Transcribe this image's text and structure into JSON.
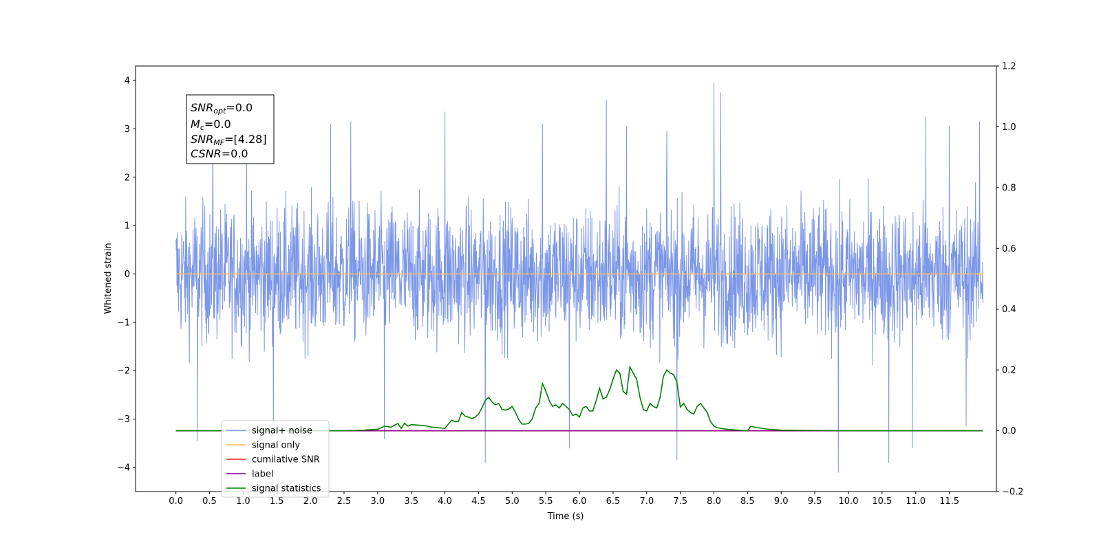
{
  "chart_data": {
    "type": "line",
    "title": "",
    "xlabel": "Time (s)",
    "ylabel": "Whitened strain",
    "y2label": "",
    "xlim": [
      -0.6,
      12.2
    ],
    "ylim": [
      -4.5,
      4.3
    ],
    "y2lim": [
      -0.2,
      1.2
    ],
    "x_ticks": [
      0.0,
      0.5,
      1.0,
      1.5,
      2.0,
      2.5,
      3.0,
      3.5,
      4.0,
      4.5,
      5.0,
      5.5,
      6.0,
      6.5,
      7.0,
      7.5,
      8.0,
      8.5,
      9.0,
      9.5,
      10.0,
      10.5,
      11.0,
      11.5
    ],
    "x_tick_labels": [
      "0.0",
      "0.5",
      "1.0",
      "1.5",
      "2.0",
      "2.5",
      "3.0",
      "3.5",
      "4.0",
      "4.5",
      "5.0",
      "5.5",
      "6.0",
      "6.5",
      "7.0",
      "7.5",
      "8.0",
      "8.5",
      "9.0",
      "9.5",
      "10.0",
      "10.5",
      "11.0",
      "11.5"
    ],
    "y_ticks": [
      -4,
      -3,
      -2,
      -1,
      0,
      1,
      2,
      3,
      4
    ],
    "y_tick_labels": [
      "−4",
      "−3",
      "−2",
      "−1",
      "0",
      "1",
      "2",
      "3",
      "4"
    ],
    "y2_ticks": [
      -0.2,
      0.0,
      0.2,
      0.4,
      0.6,
      0.8,
      1.0,
      1.2
    ],
    "y2_tick_labels": [
      "−0.2",
      "0.0",
      "0.2",
      "0.4",
      "0.6",
      "0.8",
      "1.0",
      "1.2"
    ],
    "grid": false,
    "legend_position": "lower-left",
    "annotation": {
      "snr_opt": {
        "sym": "SNR",
        "sub": "opt",
        "val": "=0.0"
      },
      "mc": {
        "sym": "M",
        "sub": "c",
        "val": "=0.0"
      },
      "snr_mf": {
        "sym": "SNR",
        "sub": "MF",
        "val": "=[4.28]"
      },
      "csnr": {
        "sym": "CSNR",
        "sub": "",
        "val": "=0.0"
      }
    },
    "series": [
      {
        "name": "signal+ noise",
        "color": "#7b96e8",
        "axis": "left",
        "kind": "noise",
        "x_range": [
          0.0,
          12.0
        ],
        "typical_range": [
          -2.6,
          2.6
        ],
        "spikes": [
          {
            "x": 0.32,
            "y": -3.45
          },
          {
            "x": 0.55,
            "y": 3.05
          },
          {
            "x": 1.05,
            "y": 3.15
          },
          {
            "x": 1.45,
            "y": -3.25
          },
          {
            "x": 2.3,
            "y": 3.1
          },
          {
            "x": 2.6,
            "y": 3.15
          },
          {
            "x": 3.1,
            "y": -3.4
          },
          {
            "x": 4.0,
            "y": 3.35
          },
          {
            "x": 4.6,
            "y": -3.9
          },
          {
            "x": 5.45,
            "y": 3.1
          },
          {
            "x": 5.85,
            "y": -3.6
          },
          {
            "x": 6.4,
            "y": 3.6
          },
          {
            "x": 6.7,
            "y": 3.05
          },
          {
            "x": 7.3,
            "y": 2.95
          },
          {
            "x": 7.45,
            "y": -3.85
          },
          {
            "x": 8.0,
            "y": 3.95
          },
          {
            "x": 8.1,
            "y": 3.75
          },
          {
            "x": 9.85,
            "y": -4.1
          },
          {
            "x": 10.6,
            "y": -3.9
          },
          {
            "x": 10.95,
            "y": -3.6
          },
          {
            "x": 11.15,
            "y": 3.25
          },
          {
            "x": 11.5,
            "y": 3.05
          },
          {
            "x": 11.75,
            "y": -3.15
          },
          {
            "x": 11.95,
            "y": 3.15
          }
        ]
      },
      {
        "name": "signal only",
        "color": "#ffbe55",
        "axis": "left",
        "x": [
          0.0,
          12.0
        ],
        "y": [
          0.0,
          0.0
        ]
      },
      {
        "name": "cumilative SNR",
        "color": "#e41a1c",
        "axis": "right",
        "x": [
          0.0,
          12.0
        ],
        "y": [
          0.0,
          0.0
        ]
      },
      {
        "name": "label",
        "color": "#800080",
        "axis": "right",
        "x": [
          0.0,
          12.0
        ],
        "y": [
          0.0,
          0.0
        ]
      },
      {
        "name": "signal statistics",
        "color": "#007f00",
        "axis": "right",
        "x": [
          0.0,
          2.5,
          2.8,
          3.0,
          3.1,
          3.2,
          3.25,
          3.3,
          3.35,
          3.4,
          3.45,
          3.5,
          3.7,
          3.8,
          3.9,
          4.0,
          4.05,
          4.1,
          4.15,
          4.2,
          4.25,
          4.3,
          4.35,
          4.4,
          4.45,
          4.5,
          4.55,
          4.6,
          4.65,
          4.7,
          4.75,
          4.8,
          4.85,
          4.9,
          4.95,
          5.0,
          5.05,
          5.1,
          5.15,
          5.2,
          5.25,
          5.3,
          5.35,
          5.4,
          5.45,
          5.5,
          5.55,
          5.6,
          5.65,
          5.7,
          5.75,
          5.8,
          5.85,
          5.9,
          5.95,
          6.0,
          6.05,
          6.1,
          6.15,
          6.2,
          6.25,
          6.3,
          6.35,
          6.4,
          6.45,
          6.5,
          6.55,
          6.6,
          6.65,
          6.7,
          6.75,
          6.8,
          6.85,
          6.9,
          6.95,
          7.0,
          7.05,
          7.1,
          7.15,
          7.2,
          7.25,
          7.3,
          7.35,
          7.4,
          7.45,
          7.5,
          7.55,
          7.6,
          7.65,
          7.7,
          7.75,
          7.8,
          7.85,
          7.9,
          7.95,
          8.0,
          8.05,
          8.1,
          8.15,
          8.3,
          8.5,
          8.55,
          8.6,
          8.8,
          9.0,
          9.5,
          10.0,
          12.0
        ],
        "y": [
          0.0,
          0.0,
          0.002,
          0.005,
          0.015,
          0.012,
          0.018,
          0.024,
          0.008,
          0.025,
          0.015,
          0.02,
          0.017,
          0.012,
          0.01,
          0.008,
          0.022,
          0.035,
          0.03,
          0.03,
          0.06,
          0.048,
          0.045,
          0.04,
          0.045,
          0.055,
          0.075,
          0.1,
          0.11,
          0.095,
          0.085,
          0.09,
          0.07,
          0.068,
          0.072,
          0.08,
          0.06,
          0.035,
          0.022,
          0.022,
          0.025,
          0.04,
          0.075,
          0.09,
          0.155,
          0.13,
          0.1,
          0.08,
          0.085,
          0.075,
          0.09,
          0.08,
          0.07,
          0.05,
          0.055,
          0.045,
          0.075,
          0.08,
          0.065,
          0.065,
          0.1,
          0.14,
          0.105,
          0.11,
          0.135,
          0.17,
          0.2,
          0.19,
          0.13,
          0.12,
          0.21,
          0.19,
          0.17,
          0.11,
          0.07,
          0.065,
          0.09,
          0.08,
          0.075,
          0.11,
          0.18,
          0.2,
          0.19,
          0.185,
          0.16,
          0.078,
          0.09,
          0.07,
          0.06,
          0.055,
          0.08,
          0.09,
          0.075,
          0.06,
          0.03,
          0.015,
          0.01,
          0.008,
          0.006,
          0.003,
          0.0,
          0.015,
          0.012,
          0.005,
          0.002,
          0.001,
          0.0,
          0.0
        ]
      }
    ]
  }
}
